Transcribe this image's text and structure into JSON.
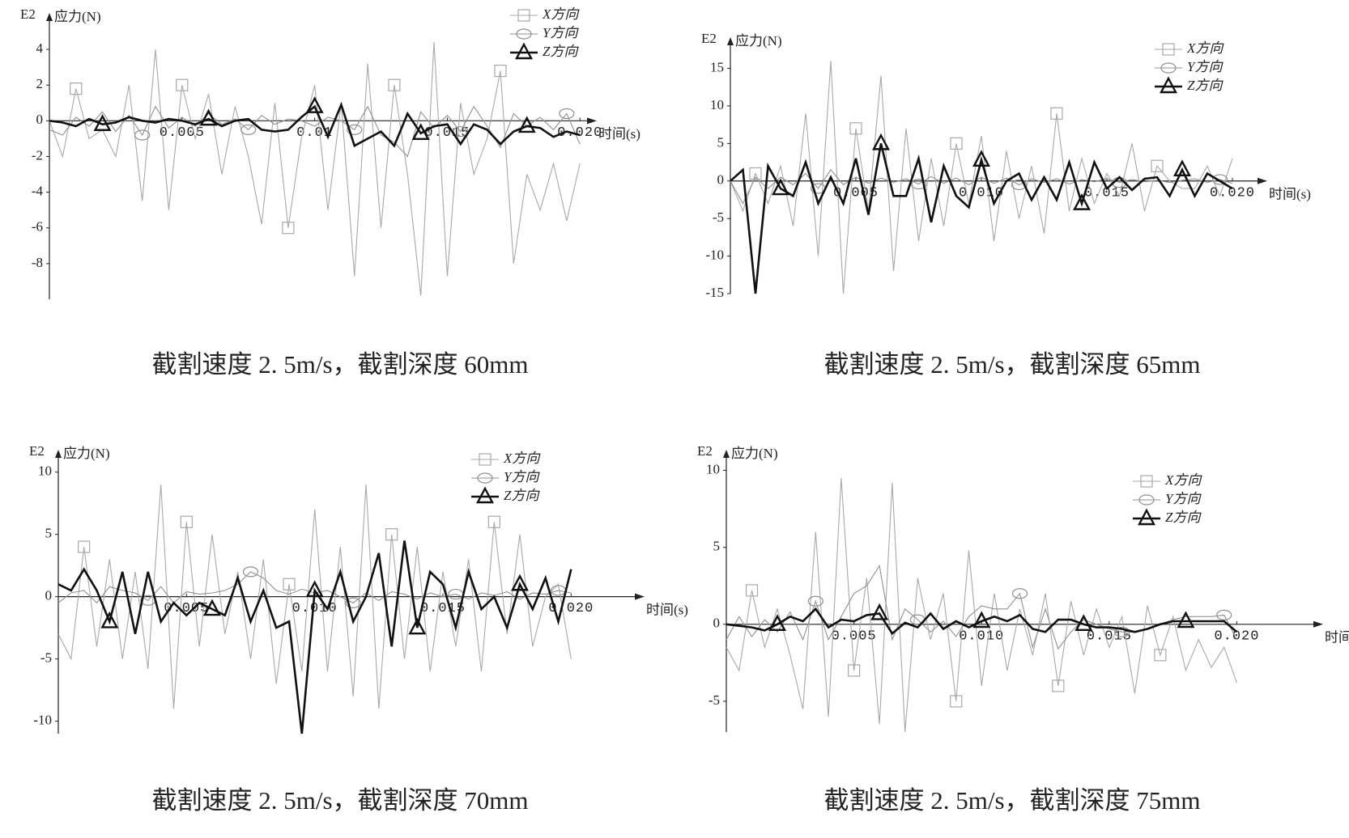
{
  "chart_data": [
    {
      "type": "line",
      "y_scale_label": "E2",
      "y_label": "应力(N)",
      "x_label": "时间(s)",
      "caption": "截割速度 2. 5m/s，截割深度 60mm",
      "x": [
        0,
        0.0005,
        0.001,
        0.0015,
        0.002,
        0.0025,
        0.003,
        0.0035,
        0.004,
        0.0045,
        0.005,
        0.0055,
        0.006,
        0.0065,
        0.007,
        0.0075,
        0.008,
        0.0085,
        0.009,
        0.0095,
        0.01,
        0.0105,
        0.011,
        0.0115,
        0.012,
        0.0125,
        0.013,
        0.0135,
        0.014,
        0.0145,
        0.015,
        0.0155,
        0.016,
        0.0165,
        0.017,
        0.0175,
        0.018,
        0.0185,
        0.019,
        0.0195,
        0.02
      ],
      "series": [
        {
          "name": "X方向",
          "color": "#a8a8a8",
          "marker": "square",
          "values": [
            0,
            -2,
            1.8,
            -1,
            -0.5,
            -2,
            2,
            -4.5,
            4,
            -5,
            2,
            -1,
            1.5,
            -3,
            0.8,
            -2,
            -5.8,
            1,
            -6,
            -1,
            2,
            -5,
            1,
            -8.7,
            3.2,
            -6,
            2,
            -3,
            -9.8,
            4.4,
            -8.7,
            1,
            -3,
            -1,
            2.8,
            -8,
            -3,
            -5,
            -2.4,
            -5.6,
            -2.4
          ]
        },
        {
          "name": "Y方向",
          "color": "#909090",
          "marker": "circle",
          "values": [
            -0.5,
            -0.8,
            0.2,
            -0.3,
            0.5,
            -0.6,
            0.3,
            -0.8,
            0.8,
            -0.4,
            0.2,
            -0.3,
            0.4,
            -0.2,
            0.1,
            -0.5,
            0.3,
            -0.2,
            0.1,
            0,
            -0.3,
            0.2,
            0,
            -0.5,
            0.8,
            -0.8,
            -1.2,
            -2,
            0.5,
            -0.4,
            0.3,
            -0.6,
            0.8,
            -0.3,
            -1.5,
            0.4,
            -0.3,
            0.2,
            -0.5,
            0.4,
            -1.3
          ]
        },
        {
          "name": "Z方向",
          "color": "#111111",
          "marker": "triangle",
          "values": [
            0,
            -0.1,
            -0.3,
            0.1,
            -0.2,
            -0.1,
            0.2,
            0,
            -0.1,
            0.1,
            0,
            -0.2,
            0.1,
            -0.3,
            0,
            0.1,
            -0.5,
            -0.6,
            -0.5,
            0.2,
            0.8,
            -0.9,
            0.9,
            -1.4,
            -1,
            -0.6,
            -1.4,
            0.4,
            -0.7,
            -0.3,
            -0.2,
            -1.3,
            -0.2,
            -0.5,
            -1.3,
            -0.6,
            -0.3,
            -0.4,
            -0.9,
            -0.6,
            -0.8
          ]
        }
      ],
      "xlim": [
        0,
        0.021
      ],
      "ylim": [
        -10,
        5
      ],
      "xticks": [
        0.005,
        0.01,
        0.015,
        {
          "value": 0.02,
          "label": "0.020"
        }
      ],
      "yticks": [
        4,
        2,
        0,
        -2,
        -4,
        -6,
        -8
      ]
    },
    {
      "type": "line",
      "y_scale_label": "E2",
      "y_label": "应力(N)",
      "x_label": "时间(s)",
      "caption": "截割速度 2. 5m/s，截割深度 65mm",
      "x": [
        0,
        0.0005,
        0.001,
        0.0015,
        0.002,
        0.0025,
        0.003,
        0.0035,
        0.004,
        0.0045,
        0.005,
        0.0055,
        0.006,
        0.0065,
        0.007,
        0.0075,
        0.008,
        0.0085,
        0.009,
        0.0095,
        0.01,
        0.0105,
        0.011,
        0.0115,
        0.012,
        0.0125,
        0.013,
        0.0135,
        0.014,
        0.0145,
        0.015,
        0.0155,
        0.016,
        0.0165,
        0.017,
        0.0175,
        0.018,
        0.0185,
        0.019,
        0.0195,
        0.02
      ],
      "series": [
        {
          "name": "X方向",
          "color": "#a8a8a8",
          "marker": "square",
          "values": [
            0,
            -4,
            1,
            -3,
            2,
            -6,
            9,
            -10,
            16,
            -15,
            7,
            -4,
            14,
            -12,
            7,
            -8,
            3,
            -6,
            5,
            -3,
            6,
            -8,
            4,
            -5,
            2,
            -7,
            9,
            -4,
            3,
            -3,
            1,
            -2,
            5,
            -4,
            2,
            0,
            -1,
            -1,
            2,
            -2,
            3
          ]
        },
        {
          "name": "Y方向",
          "color": "#909090",
          "marker": "circle",
          "values": [
            0,
            -3,
            0.5,
            -1,
            0.5,
            -0.5,
            1,
            -1,
            1.5,
            -0.5,
            0.5,
            -0.3,
            0.4,
            -0.2,
            0.3,
            -0.4,
            0.6,
            -0.3,
            0.4,
            -0.5,
            0.5,
            -0.3,
            0.4,
            -0.5,
            0.3,
            -0.2,
            0.3,
            -0.4,
            0.2,
            -0.1,
            0.3,
            -0.2,
            0.2,
            -0.1,
            0.1,
            -0.2,
            0.1,
            0.3,
            -0.2,
            0.2,
            -0.3
          ]
        },
        {
          "name": "Z方向",
          "color": "#111111",
          "marker": "triangle",
          "values": [
            0,
            1.5,
            -15,
            2,
            -1,
            -2,
            2.5,
            -3,
            0.5,
            -3,
            3,
            -4.5,
            5,
            -2,
            -2,
            3,
            -5.5,
            2,
            -2,
            -3.5,
            2.8,
            -3,
            0,
            1,
            -2.5,
            0.5,
            -2.5,
            2.5,
            -3,
            2.5,
            -1,
            0.5,
            -1.2,
            0.3,
            0.5,
            -2,
            1.5,
            -2,
            1,
            0,
            -1
          ]
        }
      ],
      "xlim": [
        0,
        0.021
      ],
      "ylim": [
        -15,
        17
      ],
      "xticks": [
        0.005,
        {
          "value": 0.01,
          "label": "0.010"
        },
        0.015,
        {
          "value": 0.02,
          "label": "0.020"
        }
      ],
      "yticks": [
        15,
        10,
        5,
        0,
        -5,
        -10,
        -15
      ]
    },
    {
      "type": "line",
      "y_scale_label": "E2",
      "y_label": "应力(N)",
      "x_label": "时间(s)",
      "caption": "截割速度 2. 5m/s，截割深度 70mm",
      "x": [
        0,
        0.0005,
        0.001,
        0.0015,
        0.002,
        0.0025,
        0.003,
        0.0035,
        0.004,
        0.0045,
        0.005,
        0.0055,
        0.006,
        0.0065,
        0.007,
        0.0075,
        0.008,
        0.0085,
        0.009,
        0.0095,
        0.01,
        0.0105,
        0.011,
        0.0115,
        0.012,
        0.0125,
        0.013,
        0.0135,
        0.014,
        0.0145,
        0.015,
        0.0155,
        0.016,
        0.0165,
        0.017,
        0.0175,
        0.018,
        0.0185,
        0.019,
        0.0195,
        0.02
      ],
      "series": [
        {
          "name": "X方向",
          "color": "#a8a8a8",
          "marker": "square",
          "values": [
            -3,
            -5,
            4,
            -4,
            3,
            -5,
            2,
            -5.8,
            9,
            -9,
            6,
            -4,
            5,
            -3,
            2,
            -5,
            3,
            -7,
            1,
            -6,
            7,
            -6,
            4,
            -8,
            9,
            -9,
            5,
            -5,
            4,
            -6,
            2,
            -4,
            3,
            -6,
            6,
            -3,
            5,
            -4,
            0,
            1,
            -5
          ]
        },
        {
          "name": "Y方向",
          "color": "#909090",
          "marker": "circle",
          "values": [
            -0.5,
            0.3,
            0.5,
            -0.5,
            0.8,
            0.5,
            0.3,
            -0.3,
            0.8,
            -0.5,
            0.4,
            0.2,
            0.3,
            0.5,
            1,
            2,
            1.5,
            0.5,
            0.2,
            0.6,
            0.3,
            0.5,
            0,
            -0.5,
            0.3,
            -0.3,
            0.4,
            0.2,
            -0.2,
            0.3,
            0,
            0.2,
            -0.2,
            0.3,
            0.1,
            0.4,
            -0.2,
            0.3,
            0.2,
            0.5,
            0.3
          ]
        },
        {
          "name": "Z方向",
          "color": "#111111",
          "marker": "triangle",
          "values": [
            1,
            0.5,
            2.2,
            0.5,
            -2,
            2,
            -3,
            2,
            -2,
            -0.5,
            -1.5,
            -0.5,
            -1,
            -1.5,
            1.5,
            -2,
            0.5,
            -2.5,
            -2,
            -11,
            0.5,
            -1,
            2,
            -2,
            0,
            3.5,
            -4,
            4.5,
            -2.5,
            2,
            1,
            -2.5,
            2,
            -1,
            0,
            -2.5,
            1,
            -1,
            1.5,
            -2,
            2.2
          ]
        }
      ],
      "xlim": [
        0,
        0.021
      ],
      "ylim": [
        -11,
        10.5
      ],
      "xticks": [
        0.005,
        {
          "value": 0.01,
          "label": "0.010"
        },
        0.015,
        {
          "value": 0.02,
          "label": "0.020"
        }
      ],
      "yticks": [
        10,
        5,
        0,
        -5,
        -10
      ]
    },
    {
      "type": "line",
      "y_scale_label": "E2",
      "y_label": "应力(N)",
      "x_label": "时间(s)",
      "caption": "截割速度 2. 5m/s，截割深度 75mm",
      "x": [
        0,
        0.0005,
        0.001,
        0.0015,
        0.002,
        0.0025,
        0.003,
        0.0035,
        0.004,
        0.0045,
        0.005,
        0.0055,
        0.006,
        0.0065,
        0.007,
        0.0075,
        0.008,
        0.0085,
        0.009,
        0.0095,
        0.01,
        0.0105,
        0.011,
        0.0115,
        0.012,
        0.0125,
        0.013,
        0.0135,
        0.014,
        0.0145,
        0.015,
        0.0155,
        0.016,
        0.0165,
        0.017,
        0.0175,
        0.018,
        0.0185,
        0.019,
        0.0195,
        0.02
      ],
      "series": [
        {
          "name": "X方向",
          "color": "#a8a8a8",
          "marker": "square",
          "values": [
            -1.5,
            -3,
            2.2,
            -1.5,
            1,
            -2,
            -5.5,
            6,
            -6,
            9.5,
            -3,
            3,
            -6.5,
            9.2,
            -7,
            3,
            -1,
            2,
            -5,
            4.8,
            -4,
            2,
            -3,
            1,
            -2,
            2,
            -4,
            1.5,
            -2,
            1,
            -1.5,
            0.5,
            -4.5,
            1.2,
            -2,
            0.5,
            -3,
            -1,
            -2.8,
            -1.5,
            -3.8
          ]
        },
        {
          "name": "Y方向",
          "color": "#909090",
          "marker": "circle",
          "values": [
            -1,
            0.5,
            -0.8,
            0.3,
            -0.5,
            0.8,
            -1,
            1.5,
            -1,
            0.5,
            2,
            2.5,
            3.8,
            -1,
            1,
            0.3,
            -0.5,
            0.2,
            -0.8,
            0.5,
            1.2,
            1,
            1,
            2,
            -1.5,
            1,
            -1.6,
            -0.5,
            0.3,
            0,
            -0.3,
            -0.5,
            -0.5,
            -0.3,
            0,
            0.3,
            0.5,
            0.5,
            0.5,
            0.6,
            -1
          ]
        },
        {
          "name": "Z方向",
          "color": "#111111",
          "marker": "triangle",
          "values": [
            0,
            -0.1,
            -0.2,
            -0.4,
            0,
            0.5,
            0.2,
            1,
            -0.2,
            0.3,
            0.2,
            0.6,
            0.7,
            -0.6,
            0.1,
            -0.2,
            0.7,
            -0.3,
            0.2,
            -0.2,
            0.2,
            0.5,
            0.2,
            0.6,
            -0.3,
            -0.5,
            0.3,
            0.3,
            0,
            -0.2,
            -0.2,
            -0.3,
            -0.5,
            -0.3,
            0,
            0.2,
            0.2,
            0.2,
            0.2,
            0.2,
            -0.5
          ]
        }
      ],
      "xlim": [
        0,
        0.021
      ],
      "ylim": [
        -7,
        10.5
      ],
      "xticks": [
        0.005,
        {
          "value": 0.01,
          "label": "0.010"
        },
        0.015,
        {
          "value": 0.02,
          "label": "0.020"
        }
      ],
      "yticks": [
        10,
        5,
        0,
        -5
      ]
    }
  ]
}
